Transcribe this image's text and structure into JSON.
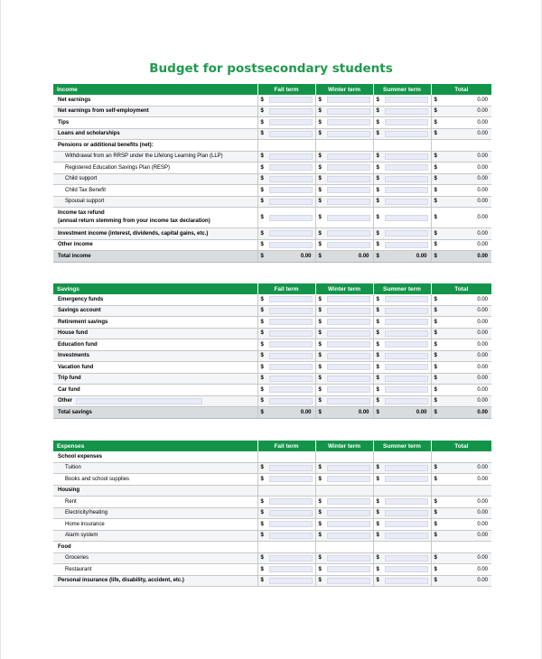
{
  "title": "Budget for postsecondary students",
  "columns": [
    "Fall term",
    "Winter term",
    "Summer term",
    "Total"
  ],
  "currency": "$",
  "zero": "0.00",
  "income": {
    "heading": "Income",
    "rows": [
      {
        "label": "Net earnings",
        "kind": "input"
      },
      {
        "label": "Net earnings from self-employment",
        "kind": "input"
      },
      {
        "label": "Tips",
        "kind": "input"
      },
      {
        "label": "Loans and scholarships",
        "kind": "input"
      },
      {
        "label": "Pensions or additional benefits (net):",
        "kind": "header"
      },
      {
        "label": "Withdrawal from an RRSP under the Lifelong Learning Plan (LLP)",
        "kind": "input",
        "indent": true
      },
      {
        "label": "Registered Education Savings Plan (RESP)",
        "kind": "input",
        "indent": true
      },
      {
        "label": "Child support",
        "kind": "input",
        "indent": true
      },
      {
        "label": "Child Tax Benefit",
        "kind": "input",
        "indent": true
      },
      {
        "label": "Spousal support",
        "kind": "input",
        "indent": true
      },
      {
        "label": "Income tax refund",
        "label2": "(annual return stemming from your income tax declaration)",
        "kind": "input",
        "tall": true
      },
      {
        "label": "Investment income (interest, dividends, capital gains, etc.)",
        "kind": "input"
      },
      {
        "label": "Other income",
        "kind": "input"
      }
    ],
    "total_label": "Total income"
  },
  "savings": {
    "heading": "Savings",
    "rows": [
      {
        "label": "Emergency funds",
        "kind": "input"
      },
      {
        "label": "Savings account",
        "kind": "input"
      },
      {
        "label": "Retirement savings",
        "kind": "input"
      },
      {
        "label": "House fund",
        "kind": "input"
      },
      {
        "label": "Education fund",
        "kind": "input"
      },
      {
        "label": "Investments",
        "kind": "input"
      },
      {
        "label": "Vacation fund",
        "kind": "input"
      },
      {
        "label": "Trip fund",
        "kind": "input"
      },
      {
        "label": "Car fund",
        "kind": "input"
      },
      {
        "label": "Other",
        "kind": "input",
        "other": true
      }
    ],
    "total_label": "Total savings"
  },
  "expenses": {
    "heading": "Expenses",
    "rows": [
      {
        "label": "School expenses",
        "kind": "header"
      },
      {
        "label": "Tuition",
        "kind": "input",
        "indent": true
      },
      {
        "label": "Books and school supplies",
        "kind": "input",
        "indent": true
      },
      {
        "label": "Housing",
        "kind": "header"
      },
      {
        "label": "Rent",
        "kind": "input",
        "indent": true
      },
      {
        "label": "Electricity/heating",
        "kind": "input",
        "indent": true
      },
      {
        "label": "Home insurance",
        "kind": "input",
        "indent": true
      },
      {
        "label": "Alarm system",
        "kind": "input",
        "indent": true
      },
      {
        "label": "Food",
        "kind": "header"
      },
      {
        "label": "Groceries",
        "kind": "input",
        "indent": true
      },
      {
        "label": "Restaurant",
        "kind": "input",
        "indent": true
      },
      {
        "label": "Personal insurance (life, disability, accident, etc.)",
        "kind": "input"
      }
    ]
  }
}
